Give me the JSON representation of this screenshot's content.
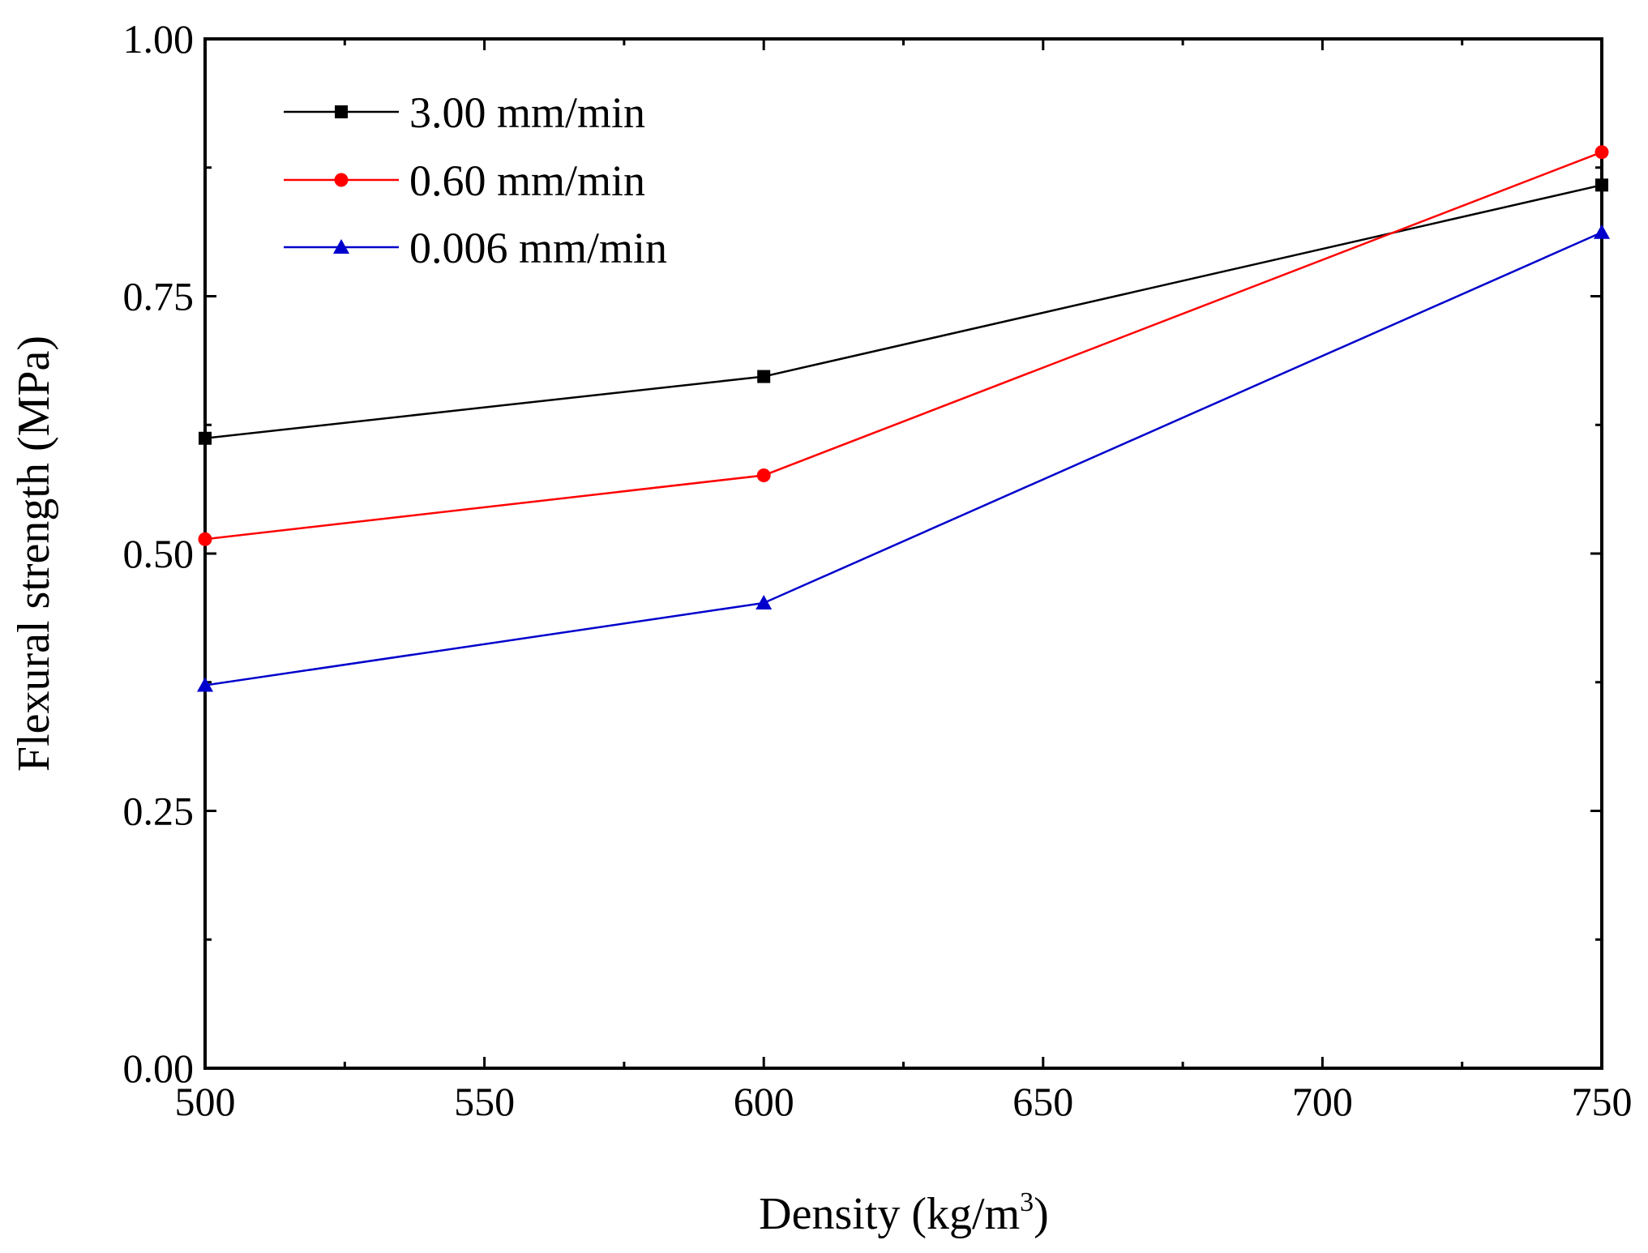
{
  "chart_data": {
    "type": "line",
    "title": "",
    "xlabel": "Density (kg/m",
    "xlabel_sup": "3",
    "xlabel_close": ")",
    "ylabel": "Flexural strength (MPa)",
    "x": [
      500,
      600,
      750
    ],
    "xlim": [
      500,
      750
    ],
    "ylim": [
      0,
      1
    ],
    "xticks": [
      500,
      550,
      600,
      650,
      700,
      750
    ],
    "xtick_labels": [
      "500",
      "550",
      "600",
      "650",
      "700",
      "750"
    ],
    "yticks": [
      0,
      0.25,
      0.5,
      0.75,
      1.0
    ],
    "ytick_labels": [
      "0.00",
      "0.25",
      "0.50",
      "0.75",
      "1.00"
    ],
    "grid": false,
    "legend_position": "top-left",
    "series": [
      {
        "name": "3.00 mm/min",
        "values": [
          0.612,
          0.672,
          0.858
        ],
        "color": "#000000",
        "marker": "square"
      },
      {
        "name": "0.60 mm/min",
        "values": [
          0.514,
          0.576,
          0.89
        ],
        "color": "#ff0000",
        "marker": "circle"
      },
      {
        "name": "0.006 mm/min",
        "values": [
          0.372,
          0.452,
          0.812
        ],
        "color": "#0000cc",
        "marker": "triangle"
      }
    ]
  }
}
